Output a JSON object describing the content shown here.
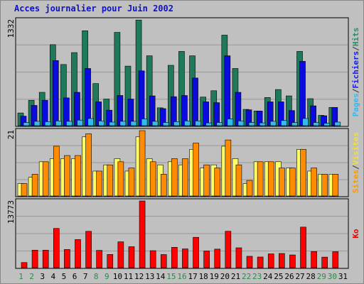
{
  "chart_data": {
    "type": "bar",
    "title": "Acces journalier pour Juin 2002",
    "categories": [
      "1",
      "2",
      "3",
      "4",
      "5",
      "6",
      "7",
      "8",
      "9",
      "10",
      "11",
      "12",
      "13",
      "14",
      "15",
      "16",
      "17",
      "18",
      "19",
      "20",
      "21",
      "22",
      "23",
      "24",
      "25",
      "26",
      "27",
      "28",
      "29",
      "30",
      "31"
    ],
    "weekend_days": [
      "1",
      "2",
      "8",
      "9",
      "15",
      "16",
      "22",
      "23",
      "29",
      "30"
    ],
    "panels": [
      {
        "id": "top",
        "ymax_label": "1332",
        "ymax": 1332,
        "legend": [
          "Pages",
          "/",
          "Fichiers",
          "/",
          "Hits"
        ],
        "legend_colors": [
          "#33bbee",
          "#333333",
          "#1a1aee",
          "#333333",
          "#2d8a6a"
        ],
        "series": [
          {
            "name": "Hits",
            "color": "#1f7a5c",
            "values": [
              160,
              320,
              420,
              1020,
              770,
              920,
              1195,
              530,
              335,
              1175,
              750,
              1330,
              880,
              225,
              760,
              935,
              880,
              360,
              440,
              1140,
              720,
              205,
              185,
              355,
              455,
              375,
              935,
              340,
              130,
              230,
              0
            ]
          },
          {
            "name": "Fichiers",
            "color": "#0b0be0",
            "values": [
              120,
              255,
              320,
              820,
              350,
              420,
              720,
              300,
              195,
              380,
              335,
              690,
              375,
              215,
              365,
              380,
              600,
              300,
              290,
              880,
              420,
              200,
              185,
              300,
              300,
              190,
              810,
              250,
              125,
              230,
              0
            ]
          },
          {
            "name": "Pages",
            "color": "#33bbee",
            "values": [
              40,
              55,
              50,
              60,
              55,
              70,
              90,
              60,
              45,
              55,
              55,
              85,
              55,
              40,
              50,
              60,
              60,
              35,
              40,
              85,
              60,
              40,
              35,
              55,
              65,
              40,
              90,
              40,
              30,
              45,
              0
            ]
          }
        ]
      },
      {
        "id": "mid",
        "ymax_label": "21",
        "ymax": 21,
        "legend": [
          "Sites",
          "/",
          "Visites"
        ],
        "legend_colors": [
          "#ff9900",
          "#333333",
          "#f0e040"
        ],
        "series": [
          {
            "name": "Visites",
            "color": "#ffff66",
            "values": [
              4,
              6,
              11,
              12,
              12,
              12,
              19,
              8,
              10,
              12,
              8,
              19,
              12,
              10,
              11,
              10,
              15,
              9,
              10,
              16,
              12,
              4,
              11,
              11,
              11,
              9,
              15,
              8,
              7,
              7,
              0
            ]
          },
          {
            "name": "Sites",
            "color": "#ff8c00",
            "values": [
              4,
              7,
              11,
              16,
              13,
              13,
              20,
              8,
              10,
              11,
              9,
              21,
              11,
              7,
              12,
              12,
              17,
              10,
              9,
              18,
              10,
              5,
              11,
              11,
              9,
              9,
              15,
              9,
              7,
              7,
              0
            ]
          }
        ]
      },
      {
        "id": "bot",
        "ymax_label": "13773",
        "ymax": 13773,
        "legend": [
          "Ko"
        ],
        "legend_colors": [
          "#ee0000"
        ],
        "series": [
          {
            "name": "Ko",
            "color": "#ff0000",
            "values": [
              1060,
              3620,
              3620,
              8100,
              3750,
              5800,
              7500,
              3570,
              2730,
              5340,
              4330,
              13773,
              3510,
              2710,
              4200,
              3880,
              6270,
              3450,
              3830,
              7510,
              4100,
              2350,
              2200,
              2850,
              2930,
              2630,
              8370,
              3340,
              2180,
              3300,
              0
            ]
          }
        ]
      }
    ]
  }
}
